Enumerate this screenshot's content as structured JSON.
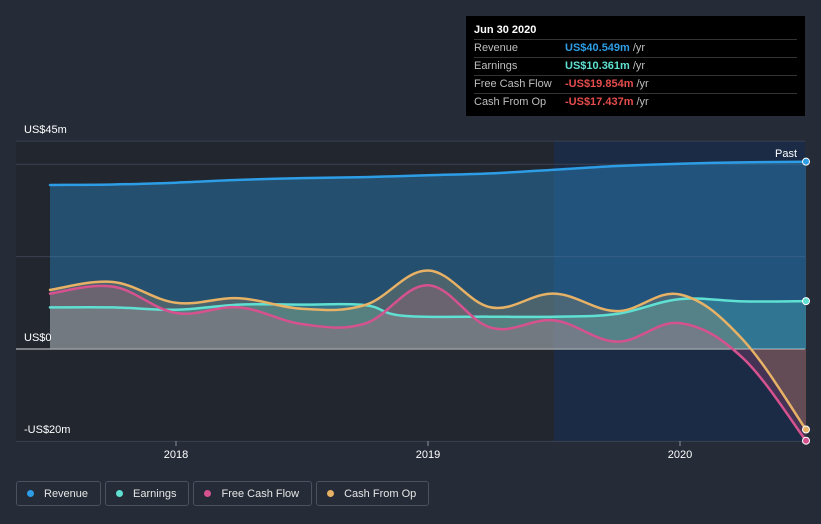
{
  "chart_data": {
    "type": "area",
    "title": "",
    "xlabel": "",
    "ylabel": "",
    "y_axis_labels": [
      "US$45m",
      "US$0",
      "-US$20m"
    ],
    "y_axis_values": [
      45,
      0,
      -20
    ],
    "ylim": [
      -20,
      45
    ],
    "x_ticks": [
      "2018",
      "2019",
      "2020"
    ],
    "x_tick_values": [
      2018.0,
      2019.0,
      2020.0
    ],
    "xlim": [
      2017.3,
      2020.5
    ],
    "forecast_start": 2019.5,
    "region_label": "Past",
    "series": [
      {
        "name": "Revenue",
        "color": "#2d9de6",
        "x": [
          2017.5,
          2017.75,
          2018.0,
          2018.25,
          2018.5,
          2018.75,
          2019.0,
          2019.25,
          2019.5,
          2019.75,
          2020.0,
          2020.25,
          2020.5
        ],
        "values": [
          35.5,
          35.6,
          36.0,
          36.6,
          37.0,
          37.2,
          37.6,
          38.0,
          38.8,
          39.6,
          40.1,
          40.4,
          40.549
        ]
      },
      {
        "name": "Earnings",
        "color": "#5fe0d2",
        "x": [
          2017.5,
          2017.75,
          2018.0,
          2018.25,
          2018.5,
          2018.75,
          2018.9,
          2019.25,
          2019.5,
          2019.75,
          2020.0,
          2020.25,
          2020.5
        ],
        "values": [
          9.0,
          9.0,
          8.5,
          9.6,
          9.6,
          9.5,
          7.2,
          7.0,
          7.0,
          7.6,
          10.8,
          10.3,
          10.361
        ]
      },
      {
        "name": "Free Cash Flow",
        "color": "#d6528f",
        "x": [
          2017.5,
          2017.75,
          2018.0,
          2018.25,
          2018.5,
          2018.75,
          2019.0,
          2019.25,
          2019.5,
          2019.75,
          2020.0,
          2020.25,
          2020.5
        ],
        "values": [
          12.0,
          13.5,
          7.8,
          9.0,
          5.4,
          5.5,
          13.8,
          4.6,
          6.2,
          1.6,
          5.6,
          -2.0,
          -19.854
        ]
      },
      {
        "name": "Cash From Op",
        "color": "#e7b266",
        "x": [
          2017.5,
          2017.75,
          2018.0,
          2018.25,
          2018.5,
          2018.75,
          2019.0,
          2019.25,
          2019.5,
          2019.75,
          2020.0,
          2020.25,
          2020.5
        ],
        "values": [
          12.8,
          14.5,
          10.0,
          11.0,
          8.7,
          9.5,
          17.0,
          9.0,
          12.0,
          8.2,
          11.8,
          2.0,
          -17.437
        ]
      }
    ]
  },
  "tooltip": {
    "date": "Jun 30 2020",
    "rows": [
      {
        "label": "Revenue",
        "value": "US$40.549m",
        "unit": "/yr",
        "color": "#2d9de6"
      },
      {
        "label": "Earnings",
        "value": "US$10.361m",
        "unit": "/yr",
        "color": "#5fe0d2"
      },
      {
        "label": "Free Cash Flow",
        "value": "-US$19.854m",
        "unit": "/yr",
        "color": "#e64c4c"
      },
      {
        "label": "Cash From Op",
        "value": "-US$17.437m",
        "unit": "/yr",
        "color": "#e64c4c"
      }
    ]
  },
  "legend": [
    {
      "label": "Revenue",
      "color": "#2d9de6"
    },
    {
      "label": "Earnings",
      "color": "#5fe0d2"
    },
    {
      "label": "Free Cash Flow",
      "color": "#d6528f"
    },
    {
      "label": "Cash From Op",
      "color": "#e7b266"
    }
  ]
}
